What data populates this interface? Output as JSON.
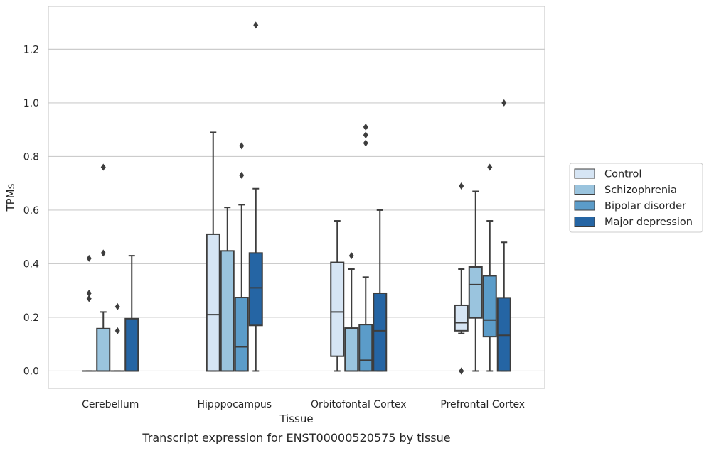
{
  "chart_data": {
    "type": "box",
    "caption": "Transcript expression for ENST00000520575 by tissue",
    "xlabel": "Tissue",
    "ylabel": "TPMs",
    "ylim": [
      -0.065,
      1.36
    ],
    "yticks": [
      0.0,
      0.2,
      0.4,
      0.6,
      0.8,
      1.0,
      1.2
    ],
    "ytick_labels": [
      "0.0",
      "0.2",
      "0.4",
      "0.6",
      "0.8",
      "1.0",
      "1.2"
    ],
    "grid": "horizontal",
    "legend_position": "right",
    "categories": [
      "Cerebellum",
      "Hipppocampus",
      "Orbitofontal Cortex",
      "Prefrontal Cortex"
    ],
    "series": [
      {
        "name": "Control",
        "color": "#d6e5f4",
        "boxes": [
          {
            "q1": 0.0,
            "median": 0.0,
            "q3": 0.0,
            "whislo": 0.0,
            "whishi": 0.0,
            "fliers": [
              0.42,
              0.29,
              0.27
            ]
          },
          {
            "q1": 0.0,
            "median": 0.21,
            "q3": 0.51,
            "whislo": 0.0,
            "whishi": 0.89,
            "fliers": []
          },
          {
            "q1": 0.055,
            "median": 0.22,
            "q3": 0.405,
            "whislo": 0.0,
            "whishi": 0.56,
            "fliers": []
          },
          {
            "q1": 0.15,
            "median": 0.18,
            "q3": 0.245,
            "whislo": 0.14,
            "whishi": 0.38,
            "fliers": [
              0.69,
              0.0,
              0.0
            ]
          }
        ]
      },
      {
        "name": "Schizophrenia",
        "color": "#9ac4de",
        "boxes": [
          {
            "q1": 0.0,
            "median": 0.0,
            "q3": 0.158,
            "whislo": 0.0,
            "whishi": 0.22,
            "fliers": [
              0.76,
              0.44
            ]
          },
          {
            "q1": 0.0,
            "median": 0.0,
            "q3": 0.448,
            "whislo": 0.0,
            "whishi": 0.61,
            "fliers": []
          },
          {
            "q1": 0.0,
            "median": 0.0,
            "q3": 0.16,
            "whislo": 0.0,
            "whishi": 0.38,
            "fliers": [
              0.43
            ]
          },
          {
            "q1": 0.198,
            "median": 0.322,
            "q3": 0.388,
            "whislo": 0.0,
            "whishi": 0.67,
            "fliers": []
          }
        ]
      },
      {
        "name": "Bipolar disorder",
        "color": "#5b9cc9",
        "boxes": [
          {
            "q1": 0.0,
            "median": 0.0,
            "q3": 0.0,
            "whislo": 0.0,
            "whishi": 0.0,
            "fliers": [
              0.24,
              0.15
            ]
          },
          {
            "q1": 0.0,
            "median": 0.09,
            "q3": 0.274,
            "whislo": 0.0,
            "whishi": 0.62,
            "fliers": [
              0.84,
              0.73
            ]
          },
          {
            "q1": 0.0,
            "median": 0.04,
            "q3": 0.173,
            "whislo": 0.0,
            "whishi": 0.35,
            "fliers": [
              0.91,
              0.88,
              0.85
            ]
          },
          {
            "q1": 0.128,
            "median": 0.19,
            "q3": 0.355,
            "whislo": 0.0,
            "whishi": 0.56,
            "fliers": [
              0.76
            ]
          }
        ]
      },
      {
        "name": "Major depression",
        "color": "#2565a4",
        "boxes": [
          {
            "q1": 0.0,
            "median": 0.0,
            "q3": 0.195,
            "whislo": 0.0,
            "whishi": 0.43,
            "fliers": []
          },
          {
            "q1": 0.17,
            "median": 0.31,
            "q3": 0.44,
            "whislo": 0.0,
            "whishi": 0.68,
            "fliers": [
              1.29
            ]
          },
          {
            "q1": 0.0,
            "median": 0.15,
            "q3": 0.29,
            "whislo": 0.0,
            "whishi": 0.6,
            "fliers": []
          },
          {
            "q1": 0.0,
            "median": 0.133,
            "q3": 0.273,
            "whislo": 0.0,
            "whishi": 0.48,
            "fliers": [
              1.0
            ]
          }
        ]
      }
    ]
  }
}
